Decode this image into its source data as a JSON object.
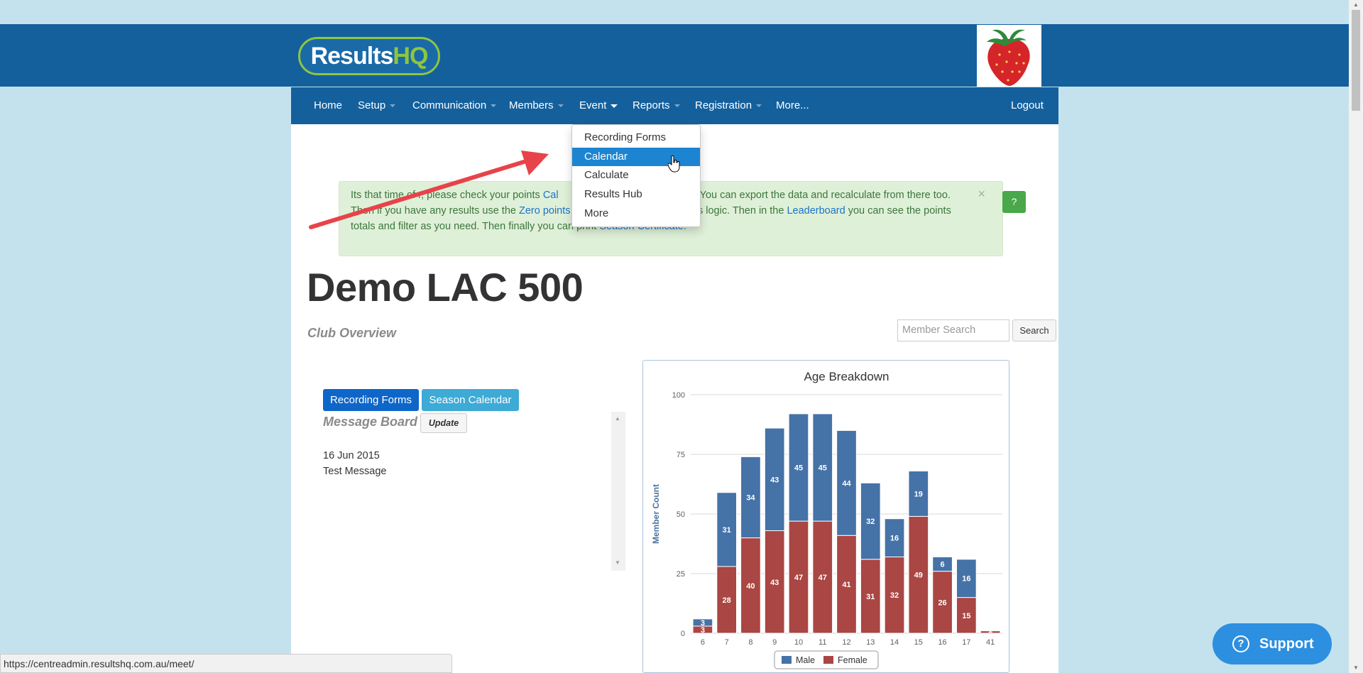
{
  "brand": {
    "logo_main": "Results",
    "logo_accent": "HQ"
  },
  "nav": {
    "home": "Home",
    "setup": "Setup",
    "communication": "Communication",
    "members": "Members",
    "event": "Event",
    "reports": "Reports",
    "registration": "Registration",
    "more": "More...",
    "logout": "Logout"
  },
  "event_menu": {
    "items": [
      "Recording Forms",
      "Calendar",
      "Calculate",
      "Results Hub",
      "More"
    ],
    "active_index": 1
  },
  "alert": {
    "seg1": "Its that time of ",
    "seg2": "r, please check your points ",
    "link_cal": "Cal",
    "seg3": "c. You can export the data and recalculate from there too.",
    "seg4": "Then if you have any results use the ",
    "link_zero": "Zero points",
    "seg5": "points logic. Then in the ",
    "link_leaderboard": "Leaderboard",
    "seg6": " you can see the points",
    "seg7": "totals and filter as you need. Then finally you can print ",
    "link_certificate": "Season Certificate",
    "seg8": ".",
    "close": "×",
    "help": "?"
  },
  "page": {
    "title": "Demo LAC 500",
    "subtitle": "Club Overview",
    "search_placeholder": "Member Search",
    "search_button": "Search"
  },
  "actions": {
    "recording_forms": "Recording Forms",
    "season_calendar": "Season Calendar"
  },
  "message_board": {
    "title": "Message Board",
    "update": "Update",
    "date": "16 Jun 2015",
    "message": "Test Message"
  },
  "chart_data": {
    "type": "bar",
    "stacked": true,
    "title": "Age Breakdown",
    "xlabel": "",
    "ylabel": "Member Count",
    "categories": [
      "6",
      "7",
      "8",
      "9",
      "10",
      "11",
      "12",
      "13",
      "14",
      "15",
      "16",
      "17",
      "41"
    ],
    "series": [
      {
        "name": "Male",
        "color": "#4572a7",
        "values": [
          3,
          31,
          34,
          43,
          45,
          45,
          44,
          32,
          16,
          19,
          6,
          16,
          0
        ]
      },
      {
        "name": "Female",
        "color": "#aa4643",
        "values": [
          3,
          28,
          40,
          43,
          47,
          47,
          41,
          31,
          32,
          49,
          26,
          15,
          1
        ]
      }
    ],
    "ylim": [
      0,
      100
    ],
    "yticks": [
      0,
      25,
      50,
      75,
      100
    ],
    "grid": true,
    "legend": "bottom"
  },
  "support": {
    "label": "Support",
    "icon": "?"
  },
  "status_bar": {
    "url": "https://centreadmin.resultshq.com.au/meet/"
  }
}
